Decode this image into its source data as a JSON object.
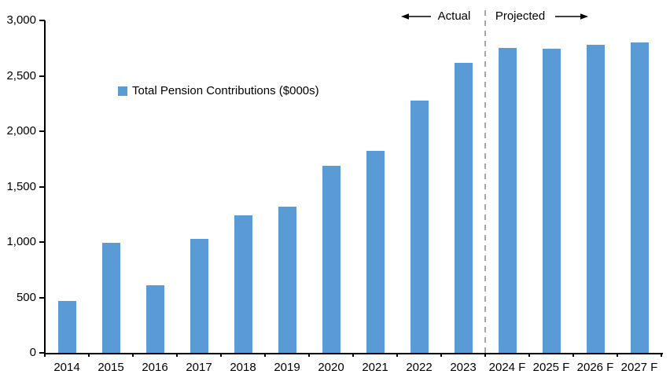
{
  "chart_data": {
    "type": "bar",
    "title": "",
    "xlabel": "",
    "ylabel": "",
    "legend": "Total Pension Contributions ($000s)",
    "legend_position": "upper-left-inside",
    "grid": false,
    "categories": [
      "2014",
      "2015",
      "2016",
      "2017",
      "2018",
      "2019",
      "2020",
      "2021",
      "2022",
      "2023",
      "2024 F",
      "2025 F",
      "2026 F",
      "2027 F"
    ],
    "values": [
      470,
      990,
      610,
      1025,
      1240,
      1320,
      1690,
      1820,
      2280,
      2615,
      2755,
      2745,
      2780,
      2800
    ],
    "ylim": [
      0,
      3000
    ],
    "ytick_step": 500,
    "ytick_labels": [
      "0",
      "500",
      "1,000",
      "1,500",
      "2,000",
      "2,500",
      "3,000"
    ],
    "annotations": {
      "actual_label": "Actual",
      "projected_label": "Projected",
      "divider_after_category": "2023"
    },
    "colors": {
      "bar": "#5B9BD5",
      "divider": "#A6A6A6",
      "axis": "#000000",
      "text": "#000000"
    }
  }
}
